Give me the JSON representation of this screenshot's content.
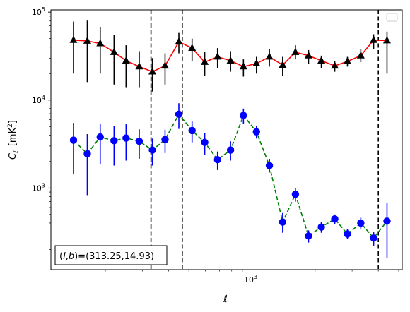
{
  "chart_data": {
    "type": "scatter",
    "xscale": "log",
    "yscale": "log",
    "xlabel": "ℓ",
    "ylabel_main": "C",
    "ylabel_sub": "ℓ",
    "ylabel_unit": "[mK",
    "ylabel_unit_sup": "2",
    "ylabel_unit_close": "]",
    "xlim": [
      110,
      5200
    ],
    "ylim": [
      118,
      106000
    ],
    "xticks": [
      {
        "value": 1000,
        "base": "10",
        "exp": "3"
      }
    ],
    "yticks": [
      {
        "value": 1000,
        "base": "10",
        "exp": "3"
      },
      {
        "value": 10000,
        "base": "10",
        "exp": "4"
      },
      {
        "value": 100000,
        "base": "10",
        "exp": "5"
      }
    ],
    "vlines": [
      330,
      465,
      4000
    ],
    "annotation": {
      "prefix": "(",
      "l": "l",
      "comma": ",",
      "b": "b",
      "suffix": ")=(313.25,14.93)"
    },
    "series": [
      {
        "color": "#000000",
        "line_color": "#ff0000",
        "line_style": "solid",
        "marker": "triangle",
        "points": [
          {
            "x": 141,
            "y": 48000,
            "lo": 20000,
            "hi": 78000
          },
          {
            "x": 164,
            "y": 47000,
            "lo": 16000,
            "hi": 80000
          },
          {
            "x": 189,
            "y": 44000,
            "lo": 20000,
            "hi": 68000
          },
          {
            "x": 220,
            "y": 35000,
            "lo": 15000,
            "hi": 55000
          },
          {
            "x": 251,
            "y": 28000,
            "lo": 14000,
            "hi": 42000
          },
          {
            "x": 290,
            "y": 24000,
            "lo": 14000,
            "hi": 36000
          },
          {
            "x": 335,
            "y": 21000,
            "lo": 12500,
            "hi": 30000
          },
          {
            "x": 385,
            "y": 24500,
            "lo": 15000,
            "hi": 34000
          },
          {
            "x": 448,
            "y": 46000,
            "lo": 34000,
            "hi": 58000
          },
          {
            "x": 518,
            "y": 39000,
            "lo": 28000,
            "hi": 50000
          },
          {
            "x": 595,
            "y": 27000,
            "lo": 19000,
            "hi": 35000
          },
          {
            "x": 685,
            "y": 31000,
            "lo": 23000,
            "hi": 39000
          },
          {
            "x": 790,
            "y": 28000,
            "lo": 21000,
            "hi": 36000
          },
          {
            "x": 910,
            "y": 24000,
            "lo": 18500,
            "hi": 29000
          },
          {
            "x": 1050,
            "y": 26000,
            "lo": 20000,
            "hi": 31000
          },
          {
            "x": 1210,
            "y": 31000,
            "lo": 24000,
            "hi": 38000
          },
          {
            "x": 1400,
            "y": 25000,
            "lo": 19000,
            "hi": 31000
          },
          {
            "x": 1610,
            "y": 35000,
            "lo": 29000,
            "hi": 42000
          },
          {
            "x": 1860,
            "y": 32000,
            "lo": 26000,
            "hi": 37000
          },
          {
            "x": 2140,
            "y": 28000,
            "lo": 23000,
            "hi": 32000
          },
          {
            "x": 2480,
            "y": 24500,
            "lo": 21000,
            "hi": 28000
          },
          {
            "x": 2850,
            "y": 27500,
            "lo": 24000,
            "hi": 31000
          },
          {
            "x": 3300,
            "y": 32000,
            "lo": 27000,
            "hi": 38000
          },
          {
            "x": 3800,
            "y": 48000,
            "lo": 38000,
            "hi": 56000
          },
          {
            "x": 4400,
            "y": 47500,
            "lo": 20000,
            "hi": 60000
          }
        ]
      },
      {
        "color": "#0000ff",
        "line_color": "#008000",
        "line_style": "dashed",
        "marker": "circle",
        "points": [
          {
            "x": 141,
            "y": 3500,
            "lo": 1450,
            "hi": 5500
          },
          {
            "x": 164,
            "y": 2450,
            "lo": 830,
            "hi": 4100
          },
          {
            "x": 189,
            "y": 3800,
            "lo": 1850,
            "hi": 5400
          },
          {
            "x": 220,
            "y": 3450,
            "lo": 1800,
            "hi": 5100
          },
          {
            "x": 251,
            "y": 3700,
            "lo": 2050,
            "hi": 5300
          },
          {
            "x": 290,
            "y": 3400,
            "lo": 2150,
            "hi": 4650
          },
          {
            "x": 335,
            "y": 2700,
            "lo": 1800,
            "hi": 3650
          },
          {
            "x": 385,
            "y": 3550,
            "lo": 2500,
            "hi": 4600
          },
          {
            "x": 448,
            "y": 6900,
            "lo": 4700,
            "hi": 9200
          },
          {
            "x": 518,
            "y": 4500,
            "lo": 3300,
            "hi": 5700
          },
          {
            "x": 595,
            "y": 3300,
            "lo": 2400,
            "hi": 4250
          },
          {
            "x": 685,
            "y": 2100,
            "lo": 1600,
            "hi": 2600
          },
          {
            "x": 790,
            "y": 2700,
            "lo": 2050,
            "hi": 3400
          },
          {
            "x": 910,
            "y": 6700,
            "lo": 5400,
            "hi": 8000
          },
          {
            "x": 1050,
            "y": 4350,
            "lo": 3650,
            "hi": 5100
          },
          {
            "x": 1210,
            "y": 1800,
            "lo": 1500,
            "hi": 2150
          },
          {
            "x": 1400,
            "y": 410,
            "lo": 310,
            "hi": 520
          },
          {
            "x": 1610,
            "y": 850,
            "lo": 700,
            "hi": 1000
          },
          {
            "x": 1860,
            "y": 285,
            "lo": 240,
            "hi": 330
          },
          {
            "x": 2140,
            "y": 360,
            "lo": 310,
            "hi": 415
          },
          {
            "x": 2480,
            "y": 445,
            "lo": 390,
            "hi": 500
          },
          {
            "x": 2850,
            "y": 300,
            "lo": 265,
            "hi": 340
          },
          {
            "x": 3300,
            "y": 400,
            "lo": 340,
            "hi": 460
          },
          {
            "x": 3800,
            "y": 270,
            "lo": 220,
            "hi": 320
          },
          {
            "x": 4400,
            "y": 420,
            "lo": 160,
            "hi": 680
          }
        ]
      }
    ]
  }
}
